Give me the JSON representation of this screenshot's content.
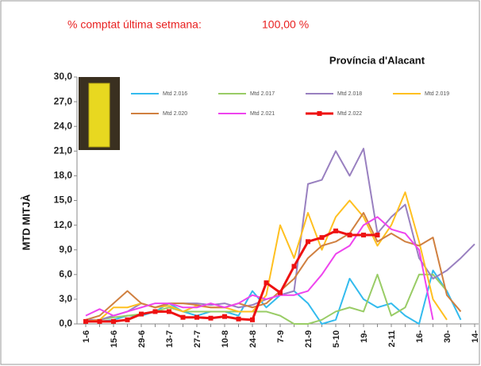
{
  "chart_data": {
    "type": "line",
    "header": "% comptat última setmana:",
    "header_value": "100,00 %",
    "title": "Província d'Alacant",
    "ylabel": "MTD MITJÀ",
    "categories": [
      "1-6",
      null,
      "15-6",
      null,
      "29-6",
      null,
      "13-7",
      null,
      "27-7",
      null,
      "10-8",
      null,
      "24-8",
      null,
      "7-9",
      null,
      "21-9",
      null,
      "5-10",
      null,
      "19-",
      null,
      "2-11",
      null,
      "16-",
      null,
      "30-",
      null,
      "14-"
    ],
    "ylim": [
      0,
      30
    ],
    "yticks": [
      {
        "value": 0,
        "label": "0,0"
      },
      {
        "value": 3,
        "label": "3,0"
      },
      {
        "value": 6,
        "label": "6,0"
      },
      {
        "value": 9,
        "label": "9,0"
      },
      {
        "value": 12,
        "label": "12,0"
      },
      {
        "value": 15,
        "label": "15,0"
      },
      {
        "value": 18,
        "label": "18,0"
      },
      {
        "value": 21,
        "label": "21,0"
      },
      {
        "value": 24,
        "label": "24,0"
      },
      {
        "value": 27,
        "label": "27,0"
      },
      {
        "value": 30,
        "label": "30,0"
      }
    ],
    "series": [
      {
        "name": "Mtd 2.016",
        "color": "#33bbee",
        "values": [
          0.5,
          0.3,
          0.5,
          1.0,
          1.0,
          1.5,
          2.5,
          1.5,
          1.0,
          1.5,
          1.5,
          1.0,
          4.0,
          2.0,
          3.5,
          4.0,
          2.5,
          0.0,
          0.5,
          5.5,
          3.0,
          2.0,
          2.5,
          1.0,
          0.0,
          6.5,
          4.0,
          0.5,
          null
        ]
      },
      {
        "name": "Mtd 2.017",
        "color": "#99cc66",
        "values": [
          0.5,
          0.5,
          0.8,
          1.0,
          1.2,
          1.5,
          2.0,
          1.5,
          1.5,
          1.5,
          1.5,
          1.5,
          1.5,
          1.5,
          1.0,
          0.0,
          0.0,
          0.5,
          1.5,
          2.0,
          1.5,
          6.0,
          1.0,
          2.0,
          6.0,
          6.0,
          4.0,
          null,
          null
        ]
      },
      {
        "name": "Mtd 2.018",
        "color": "#9980c0",
        "values": [
          0.5,
          0.5,
          1.0,
          1.5,
          2.5,
          2.0,
          2.5,
          2.5,
          2.5,
          2.3,
          2.5,
          2.0,
          2.3,
          3.0,
          3.5,
          4.0,
          17.0,
          17.5,
          21.0,
          18.0,
          21.3,
          11.0,
          13.0,
          14.5,
          8.0,
          5.5,
          6.5,
          8.0,
          9.7
        ]
      },
      {
        "name": "Mtd 2.019",
        "color": "#ffc020",
        "values": [
          0.3,
          0.5,
          2.0,
          2.0,
          2.5,
          2.0,
          2.2,
          1.5,
          2.2,
          2.0,
          2.0,
          1.5,
          1.5,
          3.5,
          12.0,
          8.0,
          13.5,
          9.0,
          13.0,
          15.0,
          13.0,
          9.5,
          12.0,
          16.0,
          10.0,
          3.0,
          0.5,
          null,
          null
        ]
      },
      {
        "name": "Mtd 2.020",
        "color": "#d08040",
        "values": [
          0.5,
          1.0,
          2.5,
          4.0,
          2.5,
          2.0,
          2.5,
          2.5,
          2.3,
          2.0,
          2.0,
          2.5,
          2.0,
          2.5,
          4.0,
          5.5,
          8.0,
          9.5,
          10.0,
          11.0,
          13.5,
          10.0,
          11.0,
          10.0,
          9.5,
          10.5,
          3.5,
          1.5,
          null
        ]
      },
      {
        "name": "Mtd 2.021",
        "color": "#ee44ee",
        "values": [
          1.0,
          1.8,
          1.0,
          1.5,
          2.0,
          2.5,
          2.5,
          2.0,
          2.0,
          2.5,
          2.0,
          2.5,
          3.5,
          3.0,
          3.5,
          3.5,
          4.0,
          6.0,
          8.5,
          9.5,
          12.0,
          13.0,
          11.5,
          11.0,
          9.0,
          0.5,
          null,
          null,
          null
        ]
      },
      {
        "name": "Mtd 2.022",
        "color": "#ee1111",
        "values": [
          0.3,
          0.3,
          0.3,
          0.5,
          1.2,
          1.5,
          1.5,
          0.8,
          0.8,
          0.7,
          0.9,
          0.6,
          0.5,
          5.0,
          3.8,
          7.0,
          10.0,
          10.5,
          11.3,
          10.8,
          10.8,
          10.8,
          null,
          null,
          null,
          null,
          null,
          null,
          null
        ]
      }
    ]
  }
}
